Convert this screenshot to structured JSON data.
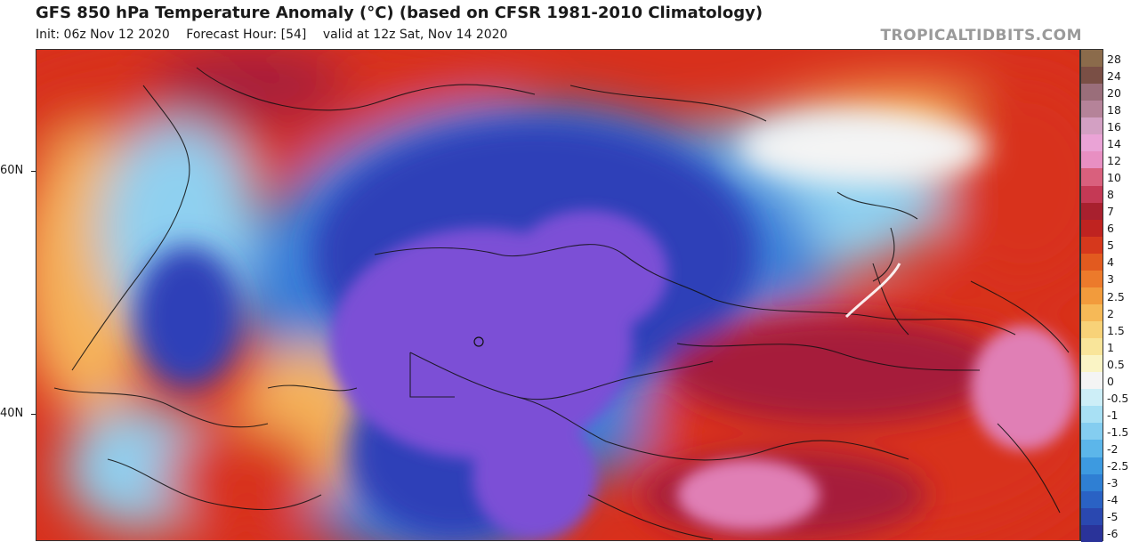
{
  "header": {
    "title": "GFS 850 hPa Temperature Anomaly (°C) (based on CFSR 1981-2010 Climatology)",
    "init": "Init: 06z Nov 12 2020",
    "forecast_hour": "Forecast Hour: [54]",
    "valid": "valid at 12z Sat, Nov 14 2020",
    "brand": "TROPICALTIDBITS.COM"
  },
  "map": {
    "lat_labels": [
      "60N",
      "40N"
    ],
    "colors": {
      "deep_cold": "#7b4fd6",
      "very_cold": "#2f3fb8",
      "cold": "#3b7fd8",
      "cool": "#8fd0f0",
      "neutral": "#f4f4f4",
      "warm": "#f5b25a",
      "hot": "#d8301c",
      "very_hot": "#a61e3a",
      "extreme": "#e07fb5"
    }
  },
  "legend": {
    "labels": [
      "28",
      "24",
      "20",
      "18",
      "16",
      "14",
      "12",
      "10",
      "8",
      "7",
      "6",
      "5",
      "4",
      "3",
      "2.5",
      "2",
      "1.5",
      "1",
      "0.5",
      "0",
      "-0.5",
      "-1",
      "-1.5",
      "-2",
      "-2.5",
      "-3",
      "-4",
      "-5",
      "-6"
    ],
    "colors": [
      "#8b6b4b",
      "#7a4f45",
      "#9a6e7a",
      "#b58399",
      "#d3a0c3",
      "#eaa3d6",
      "#e88fc2",
      "#d9607d",
      "#c53955",
      "#a8202e",
      "#bf2320",
      "#d6381c",
      "#e25a1f",
      "#ec7a2b",
      "#f29b3c",
      "#f6b957",
      "#f8d278",
      "#f9e59a",
      "#faf4c5",
      "#f4f4f4",
      "#cdeef7",
      "#a8e0f4",
      "#84cdf0",
      "#5cb6ea",
      "#3d9ae0",
      "#2f7fd3",
      "#2a62c4",
      "#2a48b0",
      "#2a3399"
    ]
  }
}
